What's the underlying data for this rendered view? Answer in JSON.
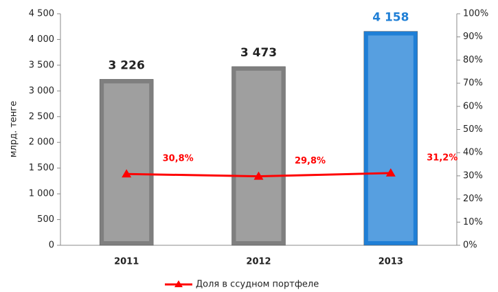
{
  "chart_data": {
    "type": "bar",
    "y_label": "млрд. тенге",
    "categories": [
      "2011",
      "2012",
      "2013"
    ],
    "values": [
      3226,
      3473,
      4158
    ],
    "value_labels": [
      "3 226",
      "3 473",
      "4 158"
    ],
    "colors": [
      "#7f7f7f",
      "#7f7f7f",
      "#1f7fd6"
    ],
    "value_label_colors": [
      "#222222",
      "#222222",
      "#1f7fd6"
    ],
    "ylim": [
      0,
      4500
    ],
    "yticks": [
      0,
      500,
      {
        "value": 1000,
        "label": "1 000"
      },
      {
        "value": 1500,
        "label": "1 500"
      },
      {
        "value": 2000,
        "label": "2 000"
      },
      {
        "value": 2500,
        "label": "2 500"
      },
      {
        "value": 3000,
        "label": "3 000"
      },
      {
        "value": 3500,
        "label": "3 500"
      },
      {
        "value": 4000,
        "label": "4 000"
      },
      {
        "value": 4500,
        "label": "4 500"
      }
    ],
    "y2lim": [
      0,
      100
    ],
    "y2ticks": [
      {
        "value": 0,
        "label": "0%"
      },
      {
        "value": 10,
        "label": "10%"
      },
      {
        "value": 20,
        "label": "20%"
      },
      {
        "value": 30,
        "label": "30%"
      },
      {
        "value": 40,
        "label": "40%"
      },
      {
        "value": 50,
        "label": "50%"
      },
      {
        "value": 60,
        "label": "60%"
      },
      {
        "value": 70,
        "label": "70%"
      },
      {
        "value": 80,
        "label": "80%"
      },
      {
        "value": 90,
        "label": "90%"
      },
      {
        "value": 100,
        "label": "100%"
      }
    ],
    "series": [
      {
        "name": "Доля в ссудном портфеле",
        "color": "#ff0000",
        "axis": "y2",
        "values": [
          30.8,
          29.8,
          31.2
        ],
        "value_labels": [
          "30,8%",
          "29,8%",
          "31,2%"
        ]
      }
    ],
    "legend": "bottom"
  }
}
